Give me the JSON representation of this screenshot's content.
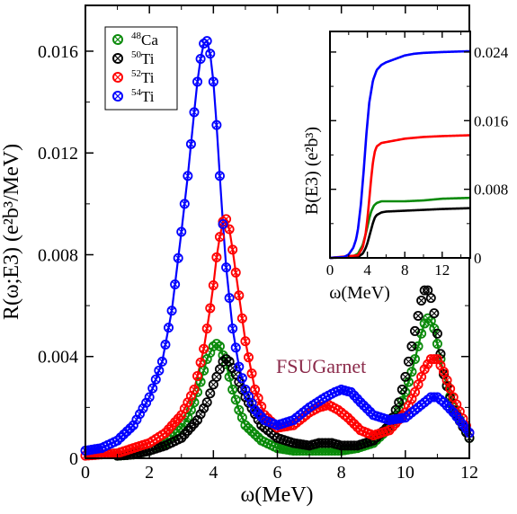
{
  "colors": {
    "Ca48": "#0a8a0a",
    "Ti50": "#000000",
    "Ti52": "#ff0000",
    "Ti54": "#0000ff",
    "annotation": "#8b2a4a"
  },
  "chart_data": [
    {
      "type": "line",
      "role": "main",
      "xlabel": "ω(MeV)",
      "ylabel": "R(ω;E3) (e²b³/MeV)",
      "xlim": [
        0,
        12
      ],
      "ylim": [
        0,
        0.0178
      ],
      "xticks": [
        0,
        2,
        4,
        6,
        8,
        10,
        12
      ],
      "xtick_labels": [
        "0",
        "2",
        "4",
        "6",
        "8",
        "10",
        "12"
      ],
      "yticks": [
        0,
        0.004,
        0.008,
        0.012,
        0.016
      ],
      "ytick_labels": [
        "0",
        "0.004",
        "0.008",
        "0.012",
        "0.016"
      ],
      "annotation": "FSUGarnet",
      "legend_position": "top-left",
      "series": [
        {
          "name": "⁴⁸Ca",
          "mass": "48",
          "element": "Ca",
          "color_key": "Ca48",
          "x": [
            1.0,
            1.5,
            2.0,
            2.5,
            3.0,
            3.2,
            3.4,
            3.6,
            3.8,
            4.0,
            4.1,
            4.2,
            4.4,
            4.6,
            4.8,
            5.0,
            5.5,
            6.0,
            6.5,
            7.0,
            7.5,
            8.0,
            8.5,
            9.0,
            9.5,
            9.8,
            10.0,
            10.2,
            10.4,
            10.5,
            10.6,
            10.7,
            10.8,
            10.9,
            11.0,
            11.2,
            11.5,
            12.0
          ],
          "y": [
            0.0001,
            0.00015,
            0.0003,
            0.0006,
            0.0012,
            0.0016,
            0.0022,
            0.003,
            0.0039,
            0.0044,
            0.0045,
            0.0044,
            0.0037,
            0.0027,
            0.0019,
            0.0013,
            0.0007,
            0.0004,
            0.0003,
            0.0003,
            0.0003,
            0.0003,
            0.0004,
            0.0006,
            0.0012,
            0.0019,
            0.0026,
            0.0034,
            0.0044,
            0.0049,
            0.0053,
            0.0055,
            0.0054,
            0.0051,
            0.0045,
            0.0033,
            0.002,
            0.0008
          ]
        },
        {
          "name": "⁵⁰Ti",
          "mass": "50",
          "element": "Ti",
          "color_key": "Ti50",
          "x": [
            1.0,
            1.5,
            2.0,
            2.5,
            3.0,
            3.5,
            3.8,
            4.0,
            4.2,
            4.3,
            4.4,
            4.5,
            4.7,
            5.0,
            5.5,
            6.0,
            6.5,
            7.0,
            7.3,
            7.5,
            7.7,
            8.0,
            8.5,
            9.0,
            9.5,
            9.8,
            10.0,
            10.2,
            10.4,
            10.5,
            10.6,
            10.7,
            10.8,
            10.9,
            11.0,
            11.2,
            11.5,
            12.0
          ],
          "y": [
            0.0001,
            0.00015,
            0.0003,
            0.0005,
            0.0008,
            0.0015,
            0.0022,
            0.0029,
            0.0035,
            0.0038,
            0.0039,
            0.0038,
            0.0033,
            0.0024,
            0.0013,
            0.0008,
            0.0006,
            0.0005,
            0.0006,
            0.0006,
            0.0006,
            0.0005,
            0.0005,
            0.0007,
            0.0013,
            0.0022,
            0.0032,
            0.0044,
            0.0056,
            0.0062,
            0.0066,
            0.0066,
            0.0063,
            0.0057,
            0.0049,
            0.0033,
            0.0019,
            0.0008
          ]
        },
        {
          "name": "⁵²Ti",
          "mass": "52",
          "element": "Ti",
          "color_key": "Ti52",
          "x": [
            0.0,
            1.0,
            2.0,
            2.5,
            3.0,
            3.4,
            3.7,
            3.9,
            4.0,
            4.1,
            4.2,
            4.3,
            4.4,
            4.5,
            4.6,
            4.8,
            5.0,
            5.3,
            5.6,
            6.0,
            6.5,
            7.0,
            7.3,
            7.6,
            7.9,
            8.2,
            8.6,
            9.0,
            9.5,
            10.0,
            10.3,
            10.6,
            10.8,
            11.0,
            11.2,
            11.5,
            12.0
          ],
          "y": [
            0.0001,
            0.0002,
            0.0006,
            0.001,
            0.0017,
            0.0027,
            0.0043,
            0.0059,
            0.0068,
            0.0079,
            0.0087,
            0.0093,
            0.0094,
            0.009,
            0.0082,
            0.0064,
            0.0046,
            0.0027,
            0.0017,
            0.0012,
            0.0013,
            0.0018,
            0.002,
            0.0021,
            0.0019,
            0.0016,
            0.0011,
            0.0009,
            0.0011,
            0.0018,
            0.0026,
            0.0035,
            0.0039,
            0.0039,
            0.0034,
            0.0024,
            0.001
          ]
        },
        {
          "name": "⁵⁴Ti",
          "mass": "54",
          "element": "Ti",
          "color_key": "Ti54",
          "x": [
            0.0,
            0.5,
            1.0,
            1.5,
            2.0,
            2.4,
            2.7,
            3.0,
            3.2,
            3.4,
            3.5,
            3.6,
            3.7,
            3.8,
            3.9,
            4.0,
            4.1,
            4.2,
            4.3,
            4.4,
            4.6,
            4.8,
            5.0,
            5.3,
            5.6,
            6.0,
            6.5,
            7.0,
            7.5,
            7.8,
            8.0,
            8.3,
            8.6,
            9.0,
            9.5,
            10.0,
            10.3,
            10.6,
            10.8,
            11.0,
            11.2,
            11.5,
            12.0
          ],
          "y": [
            0.0003,
            0.0004,
            0.0007,
            0.0013,
            0.0024,
            0.0038,
            0.0058,
            0.0089,
            0.0111,
            0.0136,
            0.0148,
            0.0157,
            0.0163,
            0.0164,
            0.0159,
            0.0148,
            0.0131,
            0.0111,
            0.0092,
            0.0075,
            0.0051,
            0.0036,
            0.0027,
            0.0019,
            0.0015,
            0.0013,
            0.0015,
            0.002,
            0.0024,
            0.0026,
            0.0027,
            0.0026,
            0.0022,
            0.0017,
            0.0015,
            0.0016,
            0.0019,
            0.0022,
            0.0024,
            0.0024,
            0.0022,
            0.0018,
            0.001
          ]
        }
      ]
    },
    {
      "type": "line",
      "role": "inset",
      "xlabel": "ω(MeV)",
      "ylabel": "B(E3) (e²b³)",
      "xlim": [
        0,
        15
      ],
      "ylim": [
        0,
        0.0264
      ],
      "xticks": [
        0,
        4,
        8,
        12
      ],
      "xtick_labels": [
        "0",
        "4",
        "8",
        "12"
      ],
      "yticks": [
        0,
        0.008,
        0.016,
        0.024
      ],
      "ytick_labels": [
        "0",
        "0.008",
        "0.016",
        "0.024"
      ],
      "series": [
        {
          "name": "⁴⁸Ca",
          "color_key": "Ca48",
          "x": [
            0,
            2.5,
            3.0,
            3.5,
            3.8,
            4.0,
            4.2,
            4.4,
            4.7,
            5.0,
            5.5,
            6,
            8,
            10,
            12,
            15
          ],
          "y": [
            0,
            0.0002,
            0.0005,
            0.0015,
            0.0027,
            0.0036,
            0.0046,
            0.0054,
            0.0061,
            0.0064,
            0.0066,
            0.0066,
            0.0066,
            0.0067,
            0.0069,
            0.007
          ]
        },
        {
          "name": "⁵⁰Ti",
          "color_key": "Ti50",
          "x": [
            0,
            3.0,
            3.5,
            3.8,
            4.0,
            4.2,
            4.4,
            4.6,
            4.8,
            5.0,
            5.5,
            6,
            8,
            10,
            12,
            15
          ],
          "y": [
            0,
            0.0001,
            0.0005,
            0.0011,
            0.0017,
            0.0025,
            0.0033,
            0.0041,
            0.0047,
            0.005,
            0.0053,
            0.0054,
            0.0055,
            0.0056,
            0.0057,
            0.0058
          ]
        },
        {
          "name": "⁵²Ti",
          "color_key": "Ti52",
          "x": [
            0,
            3.0,
            3.5,
            3.8,
            4.0,
            4.2,
            4.4,
            4.6,
            4.8,
            5.0,
            5.5,
            6,
            7,
            8,
            10,
            12,
            15
          ],
          "y": [
            0,
            0.0003,
            0.0012,
            0.0027,
            0.0045,
            0.0068,
            0.0092,
            0.0112,
            0.0124,
            0.013,
            0.0134,
            0.0135,
            0.0137,
            0.0139,
            0.0141,
            0.0142,
            0.0143
          ]
        },
        {
          "name": "⁵⁴Ti",
          "color_key": "Ti54",
          "x": [
            0,
            1.5,
            2.0,
            2.5,
            2.8,
            3.0,
            3.3,
            3.6,
            3.9,
            4.2,
            4.6,
            5.0,
            5.5,
            6,
            7,
            8,
            9,
            10,
            12,
            15
          ],
          "y": [
            0,
            0.0001,
            0.0004,
            0.0012,
            0.0022,
            0.0034,
            0.0062,
            0.0101,
            0.0145,
            0.0181,
            0.0207,
            0.0219,
            0.0225,
            0.0228,
            0.0232,
            0.0236,
            0.0238,
            0.0239,
            0.024,
            0.0241
          ]
        }
      ]
    }
  ]
}
